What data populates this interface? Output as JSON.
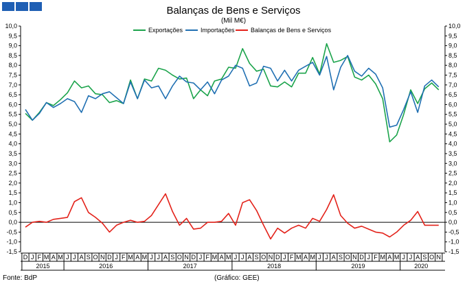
{
  "chart_data": {
    "type": "line",
    "title": "Balanças de Bens e Serviços",
    "subtitle": "(Mil M€)",
    "ylim": [
      -1.5,
      10.0
    ],
    "ytick_step": 0.5,
    "grid": false,
    "legend_position": "top-center",
    "month_labels": [
      "D",
      "J",
      "F",
      "M",
      "A",
      "M",
      "J",
      "J",
      "A",
      "S",
      "O",
      "N",
      "D",
      "J",
      "F",
      "M",
      "A",
      "M",
      "J",
      "J",
      "A",
      "S",
      "O",
      "N",
      "D",
      "J",
      "F",
      "M",
      "A",
      "M",
      "J",
      "J",
      "A",
      "S",
      "O",
      "N",
      "D",
      "J",
      "F",
      "M",
      "A",
      "M",
      "J",
      "J",
      "A",
      "S",
      "O",
      "N",
      "D",
      "J",
      "F",
      "M",
      "A",
      "M",
      "J",
      "J",
      "A",
      "S",
      "O",
      "N"
    ],
    "year_labels": [
      {
        "label": "2015",
        "index": 0
      },
      {
        "label": "2016",
        "index": 6
      },
      {
        "label": "2017",
        "index": 18
      },
      {
        "label": "2018",
        "index": 30
      },
      {
        "label": "2019",
        "index": 42
      },
      {
        "label": "2020",
        "index": 54
      }
    ],
    "series": [
      {
        "name": "Exportações",
        "color": "#1aa34a",
        "values": [
          5.55,
          5.2,
          5.6,
          6.1,
          5.95,
          6.25,
          6.6,
          7.2,
          6.85,
          6.95,
          6.55,
          6.5,
          6.1,
          6.2,
          6.05,
          7.25,
          6.3,
          7.3,
          7.2,
          7.85,
          7.75,
          7.5,
          7.3,
          7.35,
          6.3,
          6.75,
          6.45,
          7.2,
          7.3,
          7.9,
          7.85,
          8.85,
          8.1,
          7.7,
          7.8,
          6.95,
          6.9,
          7.15,
          6.9,
          7.6,
          7.6,
          8.4,
          7.55,
          9.1,
          8.15,
          8.25,
          8.45,
          7.4,
          7.25,
          7.5,
          7.05,
          6.3,
          4.1,
          4.45,
          5.5,
          6.75,
          6.05,
          6.8,
          7.1,
          6.75
        ]
      },
      {
        "name": "Importações",
        "color": "#1f6fb2",
        "values": [
          5.75,
          5.2,
          5.55,
          6.1,
          5.85,
          6.05,
          6.3,
          6.15,
          5.6,
          6.45,
          6.3,
          6.55,
          6.65,
          6.35,
          6.05,
          7.15,
          6.3,
          7.25,
          6.85,
          6.95,
          6.3,
          6.95,
          7.45,
          7.15,
          7.1,
          6.75,
          7.15,
          6.55,
          7.25,
          7.45,
          8.0,
          7.85,
          6.95,
          7.1,
          7.95,
          7.85,
          7.2,
          7.75,
          7.2,
          7.75,
          7.95,
          8.15,
          7.5,
          8.45,
          6.75,
          7.9,
          8.5,
          7.7,
          7.45,
          7.85,
          7.55,
          6.85,
          4.85,
          4.95,
          5.75,
          6.65,
          5.6,
          6.95,
          7.25,
          6.9
        ]
      },
      {
        "name": "Balanças de Bens e Serviços",
        "color": "#e32119",
        "values": [
          -0.25,
          0.0,
          0.05,
          0.0,
          0.15,
          0.2,
          0.25,
          1.05,
          1.25,
          0.5,
          0.25,
          -0.05,
          -0.5,
          -0.15,
          0.0,
          0.1,
          0.0,
          0.05,
          0.35,
          0.9,
          1.45,
          0.55,
          -0.15,
          0.2,
          -0.35,
          -0.3,
          0.0,
          0.0,
          0.05,
          0.45,
          -0.15,
          1.0,
          1.15,
          0.6,
          -0.15,
          -0.85,
          -0.3,
          -0.55,
          -0.3,
          -0.15,
          -0.3,
          0.2,
          0.05,
          0.65,
          1.4,
          0.35,
          -0.05,
          -0.3,
          -0.2,
          -0.35,
          -0.5,
          -0.55,
          -0.75,
          -0.5,
          -0.15,
          0.1,
          0.55,
          -0.15,
          -0.15,
          -0.15
        ]
      }
    ]
  },
  "footer": {
    "source": "Fonte: BdP",
    "credit": "(Gráfico: GEE)"
  }
}
